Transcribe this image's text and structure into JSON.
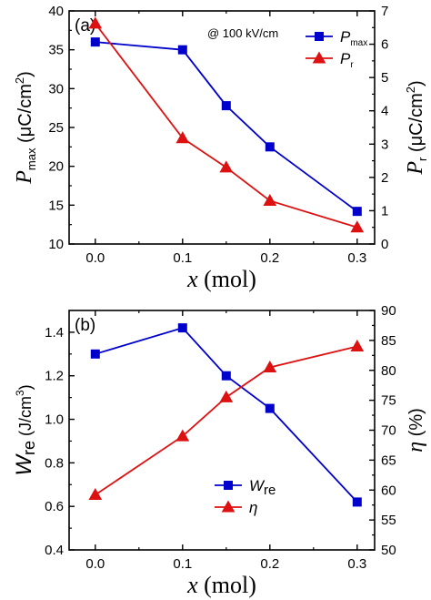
{
  "chart_data": [
    {
      "type": "line",
      "panel_label": "(a)",
      "annotation": "@ 100 kV/cm",
      "x": [
        0.0,
        0.1,
        0.15,
        0.2,
        0.3
      ],
      "x_ticks": [
        "0.0",
        "0.1",
        "0.2",
        "0.3"
      ],
      "xlim": [
        -0.03,
        0.32
      ],
      "xlabel": {
        "var": "x",
        "rest": " (mol)"
      },
      "ylabel_left": {
        "var": "P",
        "sub": "max",
        "unit": "(μC/cm",
        "sup": "2",
        "close": ")"
      },
      "ylabel_right": {
        "var": "P",
        "sub": "r",
        "unit": "(μC/cm",
        "sup": "2",
        "close": ")"
      },
      "ylim_left": [
        10,
        40
      ],
      "ylim_right": [
        0,
        7
      ],
      "y_ticks_left": [
        "10",
        "15",
        "20",
        "25",
        "30",
        "35",
        "40"
      ],
      "y_ticks_right": [
        "0",
        "1",
        "2",
        "3",
        "4",
        "5",
        "6",
        "7"
      ],
      "grid": false,
      "legend_position": "top-right",
      "series": [
        {
          "name_var": "P",
          "name_sub": "max",
          "axis": "left",
          "marker": "square",
          "color": "#0000cc",
          "values": [
            36.0,
            35.0,
            27.8,
            22.5,
            14.2
          ]
        },
        {
          "name_var": "P",
          "name_sub": "r",
          "axis": "right",
          "marker": "triangle",
          "color": "#dd1111",
          "values": [
            6.62,
            3.18,
            2.3,
            1.3,
            0.5
          ]
        }
      ]
    },
    {
      "type": "line",
      "panel_label": "(b)",
      "x": [
        0.0,
        0.1,
        0.15,
        0.2,
        0.3
      ],
      "x_ticks": [
        "0.0",
        "0.1",
        "0.2",
        "0.3"
      ],
      "xlim": [
        -0.03,
        0.32
      ],
      "xlabel": {
        "var": "x",
        "rest": " (mol)"
      },
      "ylabel_left": {
        "var": "W",
        "sub": "re",
        "unit": " (J/cm",
        "sup": "3",
        "close": ")"
      },
      "ylabel_right": {
        "var": "η",
        "sub": "",
        "unit": " (%)",
        "sup": "",
        "close": ""
      },
      "ylim_left": [
        0.4,
        1.5
      ],
      "ylim_right": [
        50,
        90
      ],
      "y_ticks_left": [
        "0.4",
        "0.6",
        "0.8",
        "1.0",
        "1.2",
        "1.4"
      ],
      "y_ticks_right": [
        "50",
        "55",
        "60",
        "65",
        "70",
        "75",
        "80",
        "85",
        "90"
      ],
      "grid": false,
      "legend_position": "bottom-center",
      "series": [
        {
          "name_var": "W",
          "name_sub": "re",
          "axis": "left",
          "marker": "square",
          "color": "#0000cc",
          "values": [
            1.3,
            1.42,
            1.2,
            1.05,
            0.62
          ]
        },
        {
          "name_var": "η",
          "name_sub": "",
          "axis": "right",
          "marker": "triangle",
          "color": "#dd1111",
          "values": [
            59.2,
            69.0,
            75.5,
            80.5,
            84.0
          ]
        }
      ]
    }
  ]
}
